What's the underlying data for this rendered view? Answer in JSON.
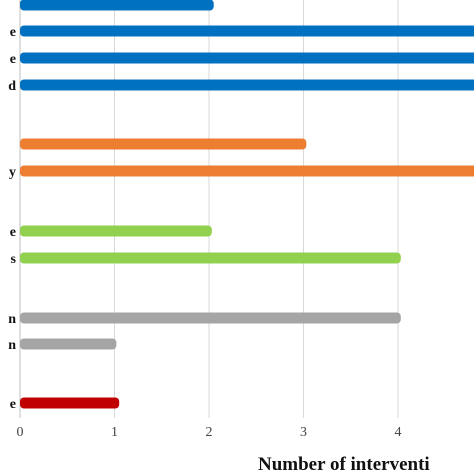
{
  "chart_data": {
    "type": "bar",
    "orientation": "horizontal",
    "xlabel": "Number of interventi",
    "xlim": [
      0,
      5
    ],
    "xticks": [
      "0",
      "1",
      "2",
      "3",
      "4"
    ],
    "grid": "vertical",
    "legend": "none",
    "bars": [
      {
        "label": "",
        "value": 2.05,
        "color": "#0070c0"
      },
      {
        "label": "e",
        "value": 5,
        "color": "#0070c0"
      },
      {
        "label": "e",
        "value": 5,
        "color": "#0070c0"
      },
      {
        "label": "d",
        "value": 5,
        "color": "#0070c0"
      },
      {
        "label": "",
        "value": 3.03,
        "color": "#ed7d31"
      },
      {
        "label": "y",
        "value": 5,
        "color": "#ed7d31"
      },
      {
        "label": "e",
        "value": 2.03,
        "color": "#92d050"
      },
      {
        "label": "s",
        "value": 4.03,
        "color": "#92d050"
      },
      {
        "label": "n",
        "value": 4.03,
        "color": "#a5a5a5"
      },
      {
        "label": "n",
        "value": 1.02,
        "color": "#a5a5a5"
      },
      {
        "label": "e",
        "value": 1.05,
        "color": "#c00000"
      }
    ]
  }
}
